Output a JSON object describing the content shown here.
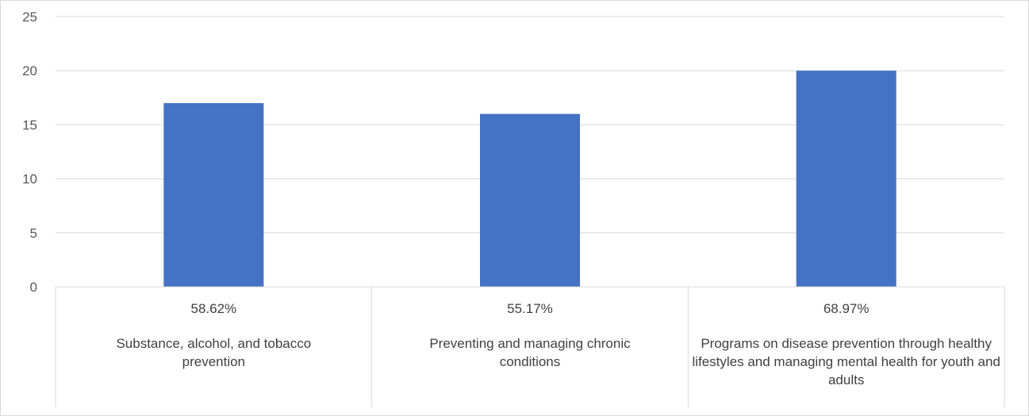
{
  "chart_data": {
    "type": "bar",
    "categories": [
      {
        "percent_label": "58.62%",
        "label": "Substance, alcohol, and tobacco prevention"
      },
      {
        "percent_label": "55.17%",
        "label": "Preventing and managing chronic conditions"
      },
      {
        "percent_label": "68.97%",
        "label": "Programs on disease prevention through healthy lifestyles and managing mental health for youth and adults"
      }
    ],
    "values": [
      17,
      16,
      20
    ],
    "ylim": [
      0,
      25
    ],
    "yticks": [
      "0",
      "5",
      "10",
      "15",
      "20",
      "25"
    ],
    "grid": true,
    "colors": {
      "bar": "#4472c4",
      "grid": "#d9d9d9"
    }
  }
}
